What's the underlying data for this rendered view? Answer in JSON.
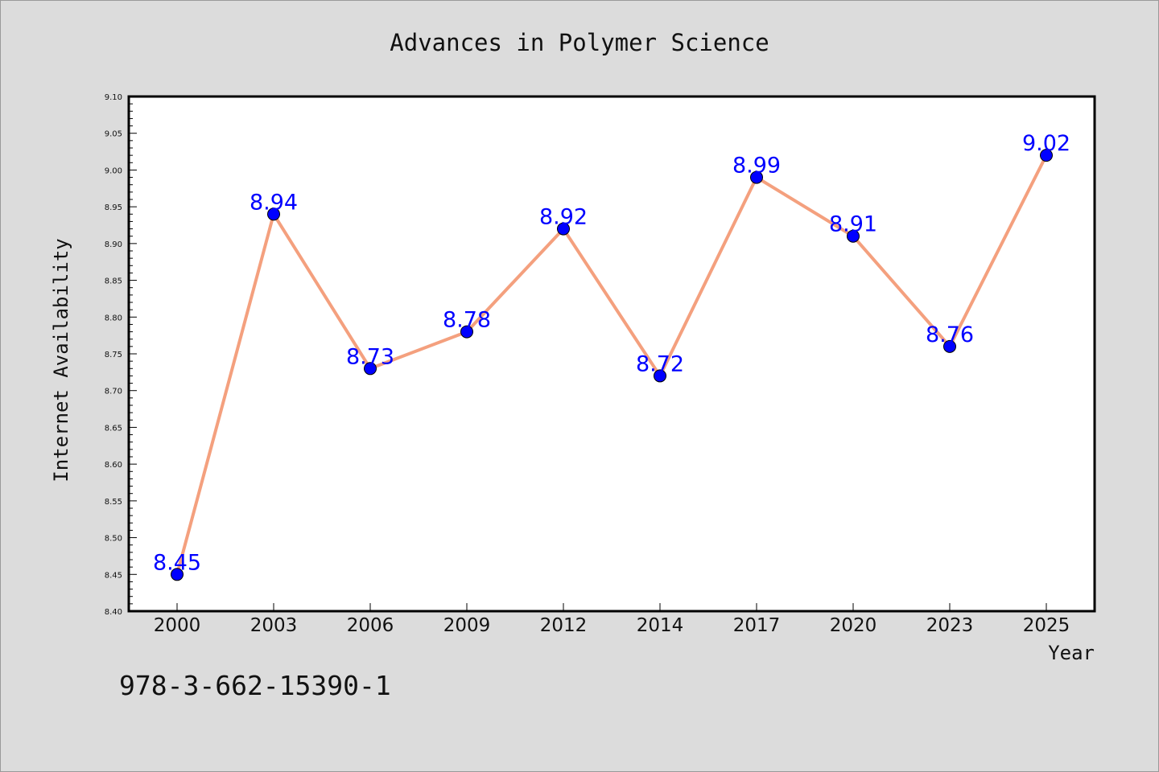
{
  "footer": {
    "isbn": "978-3-662-15390-1"
  },
  "colors": {
    "background": "#dcdcdc",
    "plot_bg": "#ffffff",
    "line": "#f4a07e",
    "marker": "#0000ff",
    "label": "#0000ff"
  },
  "chart_data": {
    "type": "line",
    "title": "Advances in Polymer Science",
    "xlabel": "Year",
    "ylabel": "Internet Availability",
    "categories": [
      "2000",
      "2003",
      "2006",
      "2009",
      "2012",
      "2014",
      "2017",
      "2020",
      "2023",
      "2025"
    ],
    "series": [
      {
        "values": [
          8.45,
          8.94,
          8.73,
          8.78,
          8.92,
          8.72,
          8.99,
          8.91,
          8.76,
          9.02
        ]
      }
    ],
    "data_labels": [
      "8.45",
      "8.94",
      "8.73",
      "8.78",
      "8.92",
      "8.72",
      "8.99",
      "8.91",
      "8.76",
      "9.02"
    ],
    "ylim": [
      8.4,
      9.1
    ],
    "yticks": [
      "8.40",
      "8.45",
      "8.50",
      "8.55",
      "8.60",
      "8.65",
      "8.70",
      "8.75",
      "8.80",
      "8.85",
      "8.90",
      "8.95",
      "9.00",
      "9.05",
      "9.10"
    ],
    "grid": false,
    "legend": "none"
  }
}
